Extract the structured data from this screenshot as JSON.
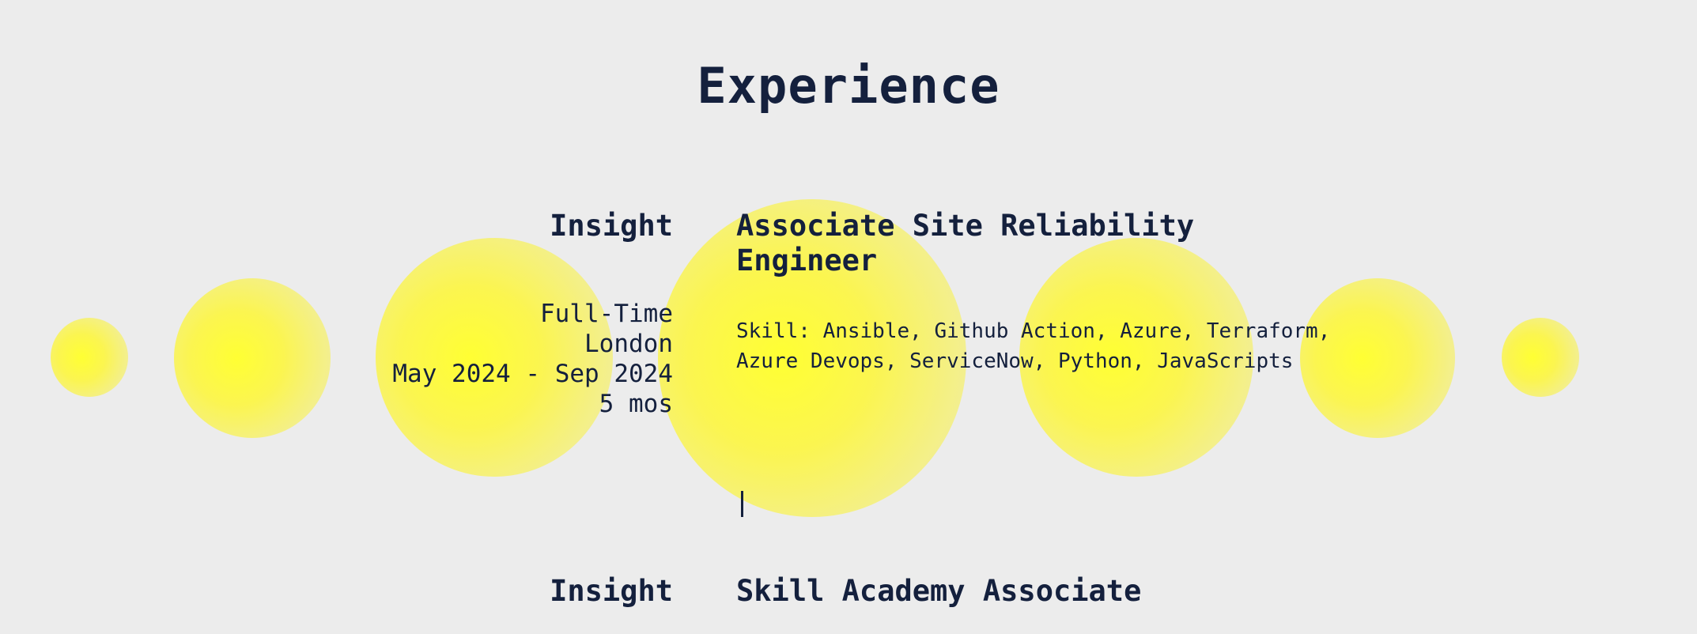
{
  "section": {
    "title": "Experience"
  },
  "experience": [
    {
      "company": "Insight",
      "role": "Associate Site Reliability Engineer",
      "employment_type": "Full-Time",
      "location": "London",
      "dates": "May 2024 - Sep 2024",
      "duration": "5 mos",
      "skills": "Skill: Ansible, Github Action, Azure, Terraform, Azure Devops, ServiceNow, Python, JavaScripts"
    },
    {
      "company": "Insight",
      "role": "Skill Academy Associate"
    }
  ],
  "colors": {
    "background": "#ececec",
    "text": "#14203d",
    "orb": "#ffff33"
  }
}
